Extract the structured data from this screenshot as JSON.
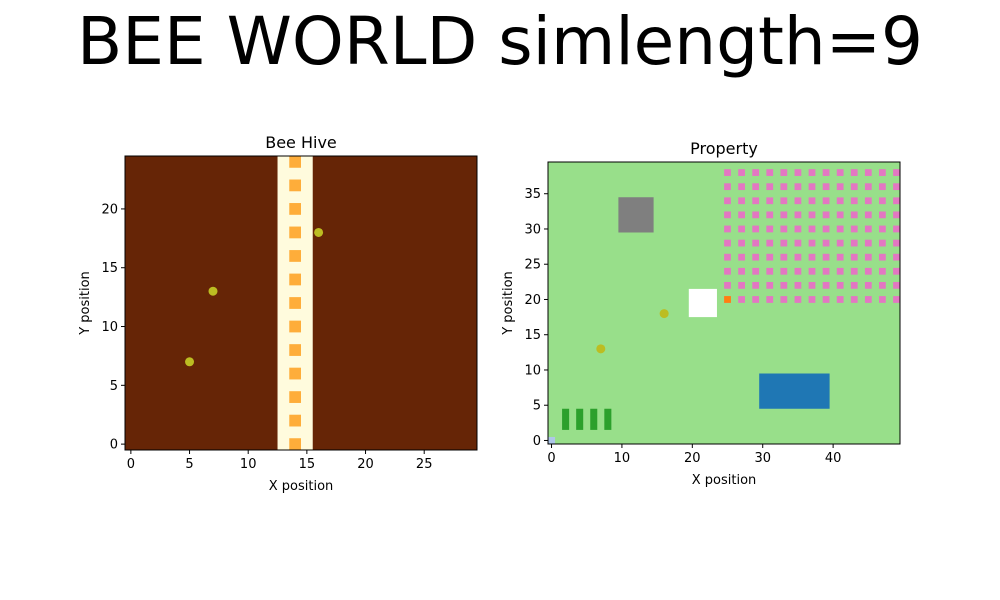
{
  "figure": {
    "title": "BEE WORLD simlength=9"
  },
  "chart_data": [
    {
      "type": "heatmap",
      "title": "Bee Hive",
      "xlabel": "X position",
      "ylabel": "Y position",
      "xlim": [
        -0.5,
        29.5
      ],
      "ylim": [
        -0.5,
        24.5
      ],
      "xticks": [
        0,
        5,
        10,
        15,
        20,
        25
      ],
      "yticks": [
        0,
        5,
        10,
        15,
        20
      ],
      "colors": {
        "background": "#662506",
        "comb": "#fffbdd",
        "cell": "#fead3a",
        "bee": "#bcbd22"
      },
      "comb": {
        "x": [
          13,
          15
        ]
      },
      "cells": {
        "x": 14,
        "y": [
          0,
          2,
          4,
          6,
          8,
          10,
          12,
          14,
          16,
          18,
          20,
          22,
          24
        ]
      },
      "bees": [
        {
          "x": 5,
          "y": 7
        },
        {
          "x": 7,
          "y": 13
        },
        {
          "x": 16,
          "y": 18
        }
      ]
    },
    {
      "type": "heatmap",
      "title": "Property",
      "xlabel": "X position",
      "ylabel": "Y position",
      "xlim": [
        -0.5,
        49.5
      ],
      "ylim": [
        -0.5,
        39.5
      ],
      "xticks": [
        0,
        10,
        20,
        30,
        40
      ],
      "yticks": [
        0,
        5,
        10,
        15,
        20,
        25,
        30,
        35
      ],
      "colors": {
        "background": "#98df8a",
        "building": "#7f7f7f",
        "hive": "#ffffff",
        "pond": "#1f77b4",
        "plant": "#2ca02c",
        "flower": "#e377c2",
        "marker": "#ff7f0e",
        "corner": "#aec7e8",
        "bee": "#bcbd22"
      },
      "building": {
        "x": [
          10,
          14
        ],
        "y": [
          30,
          34
        ]
      },
      "hive": {
        "x": [
          20,
          23
        ],
        "y": [
          18,
          21
        ]
      },
      "pond": {
        "x": [
          30,
          39
        ],
        "y": [
          5,
          9
        ]
      },
      "plants": {
        "x": [
          2,
          4,
          6,
          8
        ],
        "y": [
          2,
          4
        ]
      },
      "flowers": {
        "x": [
          25,
          27,
          29,
          31,
          33,
          35,
          37,
          39,
          41,
          43,
          45,
          47,
          49
        ],
        "y": [
          20,
          22,
          24,
          26,
          28,
          30,
          32,
          34,
          36,
          38
        ]
      },
      "marker": {
        "x": 25,
        "y": 20
      },
      "corner": {
        "x": 0,
        "y": 0
      },
      "bees": [
        {
          "x": 7,
          "y": 13
        },
        {
          "x": 16,
          "y": 18
        }
      ]
    }
  ]
}
